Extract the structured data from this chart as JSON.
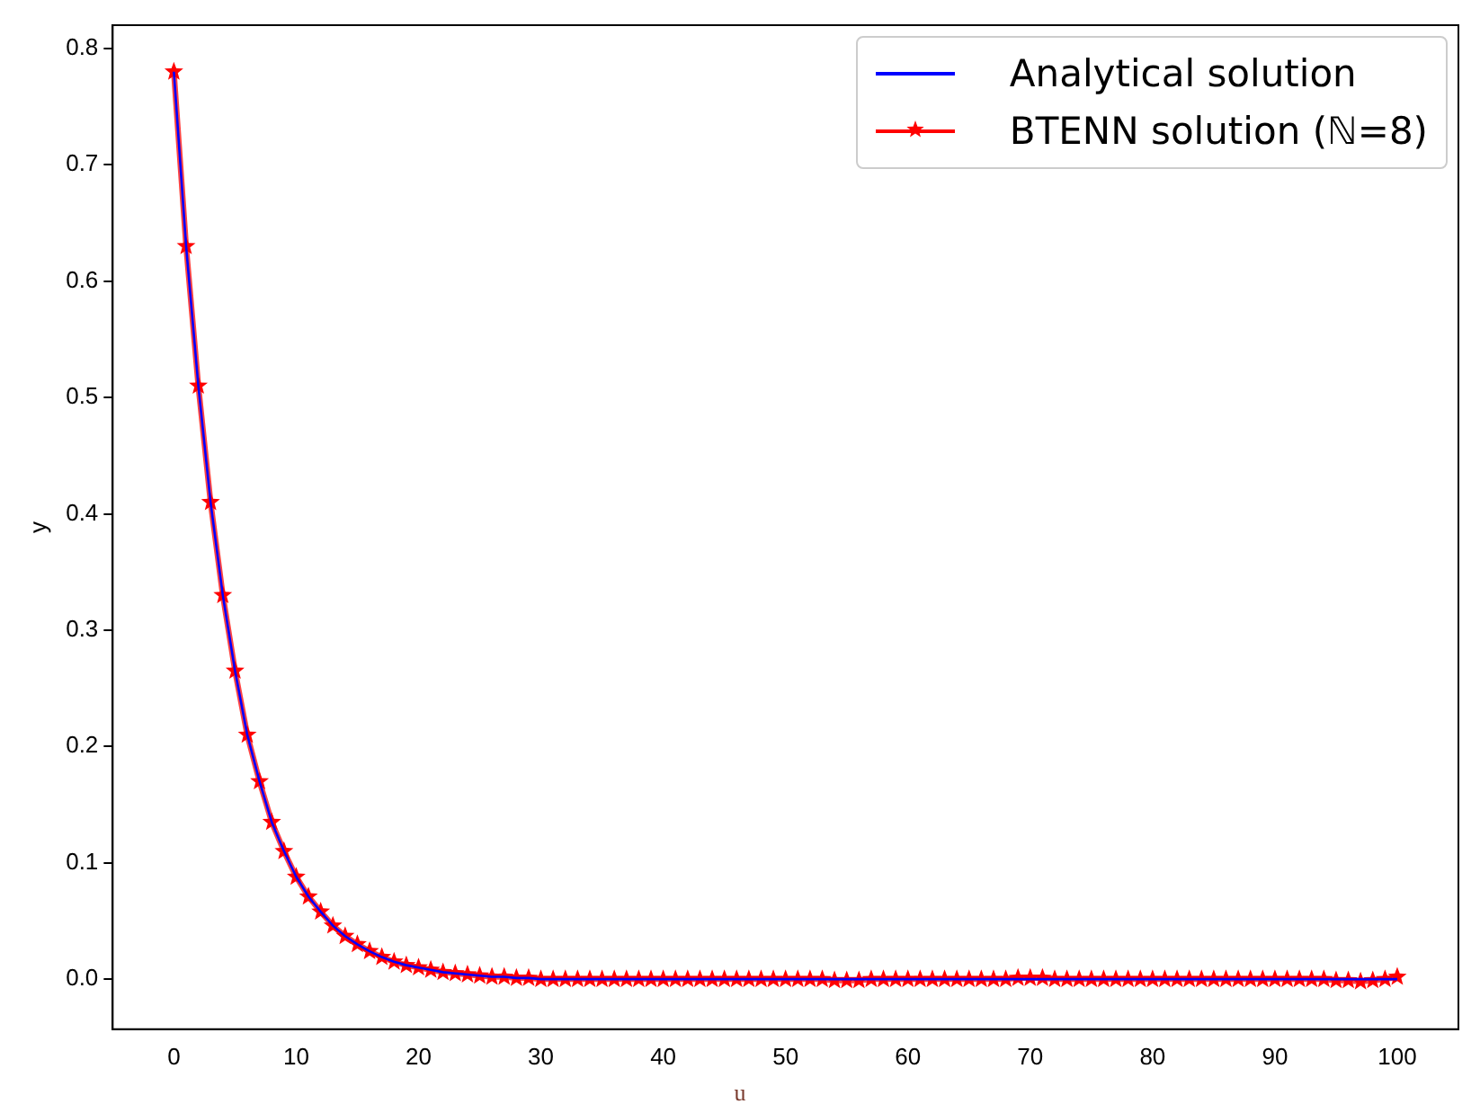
{
  "chart_data": {
    "type": "line",
    "xlabel": "u",
    "ylabel": "y",
    "x": [
      0,
      1,
      2,
      3,
      4,
      5,
      6,
      7,
      8,
      9,
      10,
      11,
      12,
      13,
      14,
      15,
      16,
      17,
      18,
      19,
      20,
      21,
      22,
      23,
      24,
      25,
      26,
      27,
      28,
      29,
      30,
      31,
      32,
      33,
      34,
      35,
      36,
      37,
      38,
      39,
      40,
      41,
      42,
      43,
      44,
      45,
      46,
      47,
      48,
      49,
      50,
      51,
      52,
      53,
      54,
      55,
      56,
      57,
      58,
      59,
      60,
      61,
      62,
      63,
      64,
      65,
      66,
      67,
      68,
      69,
      70,
      71,
      72,
      73,
      74,
      75,
      76,
      77,
      78,
      79,
      80,
      81,
      82,
      83,
      84,
      85,
      86,
      87,
      88,
      89,
      90,
      91,
      92,
      93,
      94,
      95,
      96,
      97,
      98,
      99,
      100
    ],
    "series": [
      {
        "name": "Analytical solution",
        "color": "#0000ff",
        "marker": "none",
        "values": [
          0.78,
          0.63,
          0.51,
          0.41,
          0.33,
          0.265,
          0.21,
          0.17,
          0.135,
          0.11,
          0.088,
          0.071,
          0.058,
          0.046,
          0.037,
          0.03,
          0.024,
          0.019,
          0.015,
          0.012,
          0.01,
          0.008,
          0.006,
          0.005,
          0.004,
          0.003,
          0.002,
          0.002,
          0.001,
          0.001,
          0,
          0,
          0,
          0,
          0,
          0,
          0,
          0,
          0,
          0,
          0,
          0,
          0,
          0,
          0,
          0,
          0,
          0,
          0,
          0,
          0,
          0,
          0,
          0,
          0,
          0,
          0,
          0,
          0,
          0,
          0,
          0,
          0,
          0,
          0,
          0,
          0,
          0,
          0,
          0,
          0,
          0,
          0,
          0,
          0,
          0,
          0,
          0,
          0,
          0,
          0,
          0,
          0,
          0,
          0,
          0,
          0,
          0,
          0,
          0,
          0,
          0,
          0,
          0,
          0,
          0,
          0,
          0,
          0,
          0,
          0
        ]
      },
      {
        "name": "BTENN solution (ℕ=8)",
        "color": "#ff0000",
        "marker": "star",
        "values": [
          0.78,
          0.63,
          0.51,
          0.41,
          0.33,
          0.265,
          0.21,
          0.17,
          0.135,
          0.11,
          0.088,
          0.071,
          0.058,
          0.046,
          0.037,
          0.03,
          0.024,
          0.019,
          0.015,
          0.012,
          0.01,
          0.008,
          0.006,
          0.005,
          0.004,
          0.003,
          0.002,
          0.002,
          0.001,
          0.001,
          0,
          0,
          0,
          0,
          0,
          0,
          0,
          0,
          0,
          0,
          0,
          0,
          0,
          0,
          0,
          0,
          0,
          0,
          0,
          0,
          0,
          0,
          0,
          0,
          -0.001,
          -0.001,
          -0.001,
          0,
          0,
          0,
          0,
          0,
          0,
          0,
          0,
          0,
          0,
          0,
          0,
          0.001,
          0.001,
          0.001,
          0,
          0,
          0,
          0,
          0,
          0,
          0,
          0,
          0,
          0,
          0,
          0,
          0,
          0,
          0,
          0,
          0,
          0,
          0,
          0,
          0,
          0,
          0,
          -0.001,
          -0.001,
          -0.002,
          -0.001,
          0,
          0.002
        ]
      }
    ],
    "xlim": [
      -5,
      105
    ],
    "xticks": [
      0,
      10,
      20,
      30,
      40,
      50,
      60,
      70,
      80,
      90,
      100
    ],
    "ylim": [
      -0.043,
      0.82
    ],
    "yticks": [
      {
        "value": 0,
        "label": "0.0"
      },
      0.1,
      0.2,
      0.3,
      0.4,
      0.5,
      0.6,
      0.7,
      0.8
    ],
    "legend": "top right",
    "line_style": "solid"
  }
}
